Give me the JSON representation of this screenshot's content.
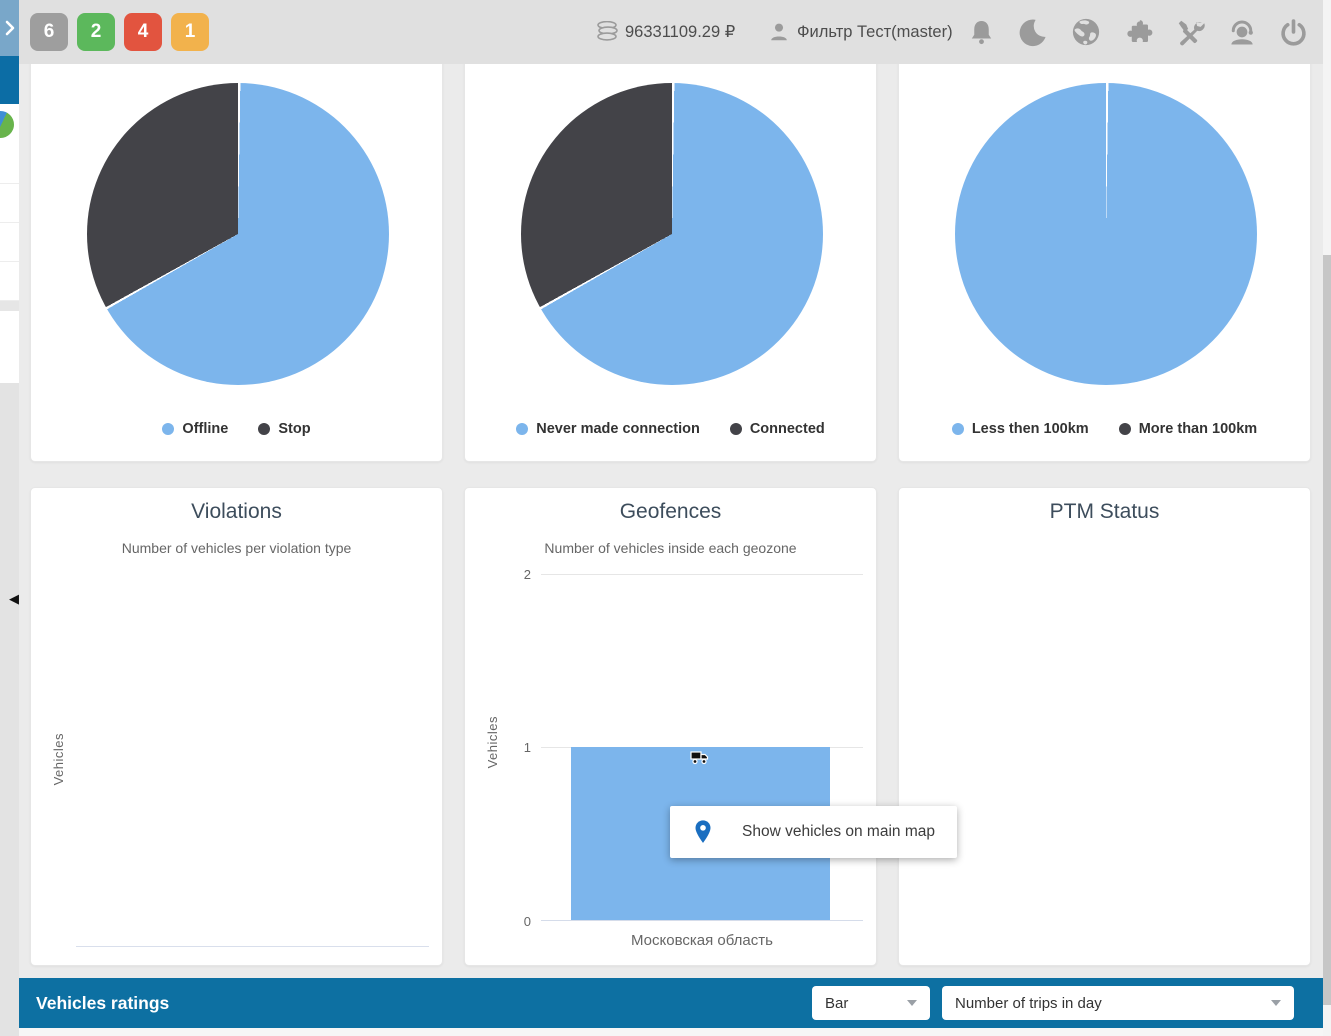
{
  "topbar": {
    "badges": [
      {
        "label": "6",
        "color": "#9e9e9e"
      },
      {
        "label": "2",
        "color": "#5cb85c"
      },
      {
        "label": "4",
        "color": "#e2543f"
      },
      {
        "label": "1",
        "color": "#f2b24c"
      }
    ],
    "balance": "96331109.29 ₽",
    "user": "Фильтр Тест(master)",
    "action_icons": [
      "notifications-icon",
      "night-mode-icon",
      "language-globe-icon",
      "plugins-icon",
      "tools-icon",
      "support-icon",
      "logout-icon"
    ]
  },
  "chart_data": [
    {
      "type": "pie",
      "labels": [
        "Offline",
        "Stop"
      ],
      "values_pct": [
        66.7,
        33.3
      ],
      "colors": [
        "#7cb5ec",
        "#434348"
      ],
      "legend_position": "bottom"
    },
    {
      "type": "pie",
      "labels": [
        "Never made connection",
        "Connected"
      ],
      "values_pct": [
        66.7,
        33.3
      ],
      "colors": [
        "#7cb5ec",
        "#434348"
      ],
      "legend_position": "bottom"
    },
    {
      "type": "pie",
      "labels": [
        "Less then 100km",
        "More than 100km"
      ],
      "values_pct": [
        100,
        0
      ],
      "colors": [
        "#7cb5ec",
        "#434348"
      ],
      "legend_position": "bottom"
    },
    {
      "type": "bar",
      "title": "Violations",
      "subtitle": "Number of vehicles per violation type",
      "ylabel": "Vehicles",
      "categories": [],
      "values": [],
      "grid": false
    },
    {
      "type": "bar",
      "title": "Geofences",
      "subtitle": "Number of vehicles inside each geozone",
      "ylabel": "Vehicles",
      "categories": [
        "Московская область"
      ],
      "values": [
        1
      ],
      "ylim": [
        0,
        2
      ],
      "yticks": [
        0,
        1,
        2
      ],
      "bar_color": "#7cb5ec",
      "grid": true
    },
    {
      "type": "none",
      "title": "PTM Status"
    }
  ],
  "tooltip": {
    "label": "Show vehicles on main map",
    "pin_color": "#1a6ec0"
  },
  "ratings": {
    "title": "Vehicles ratings",
    "chart_type": "Bar",
    "metric": "Number of trips in day",
    "bar_color": "#0d70a2"
  }
}
